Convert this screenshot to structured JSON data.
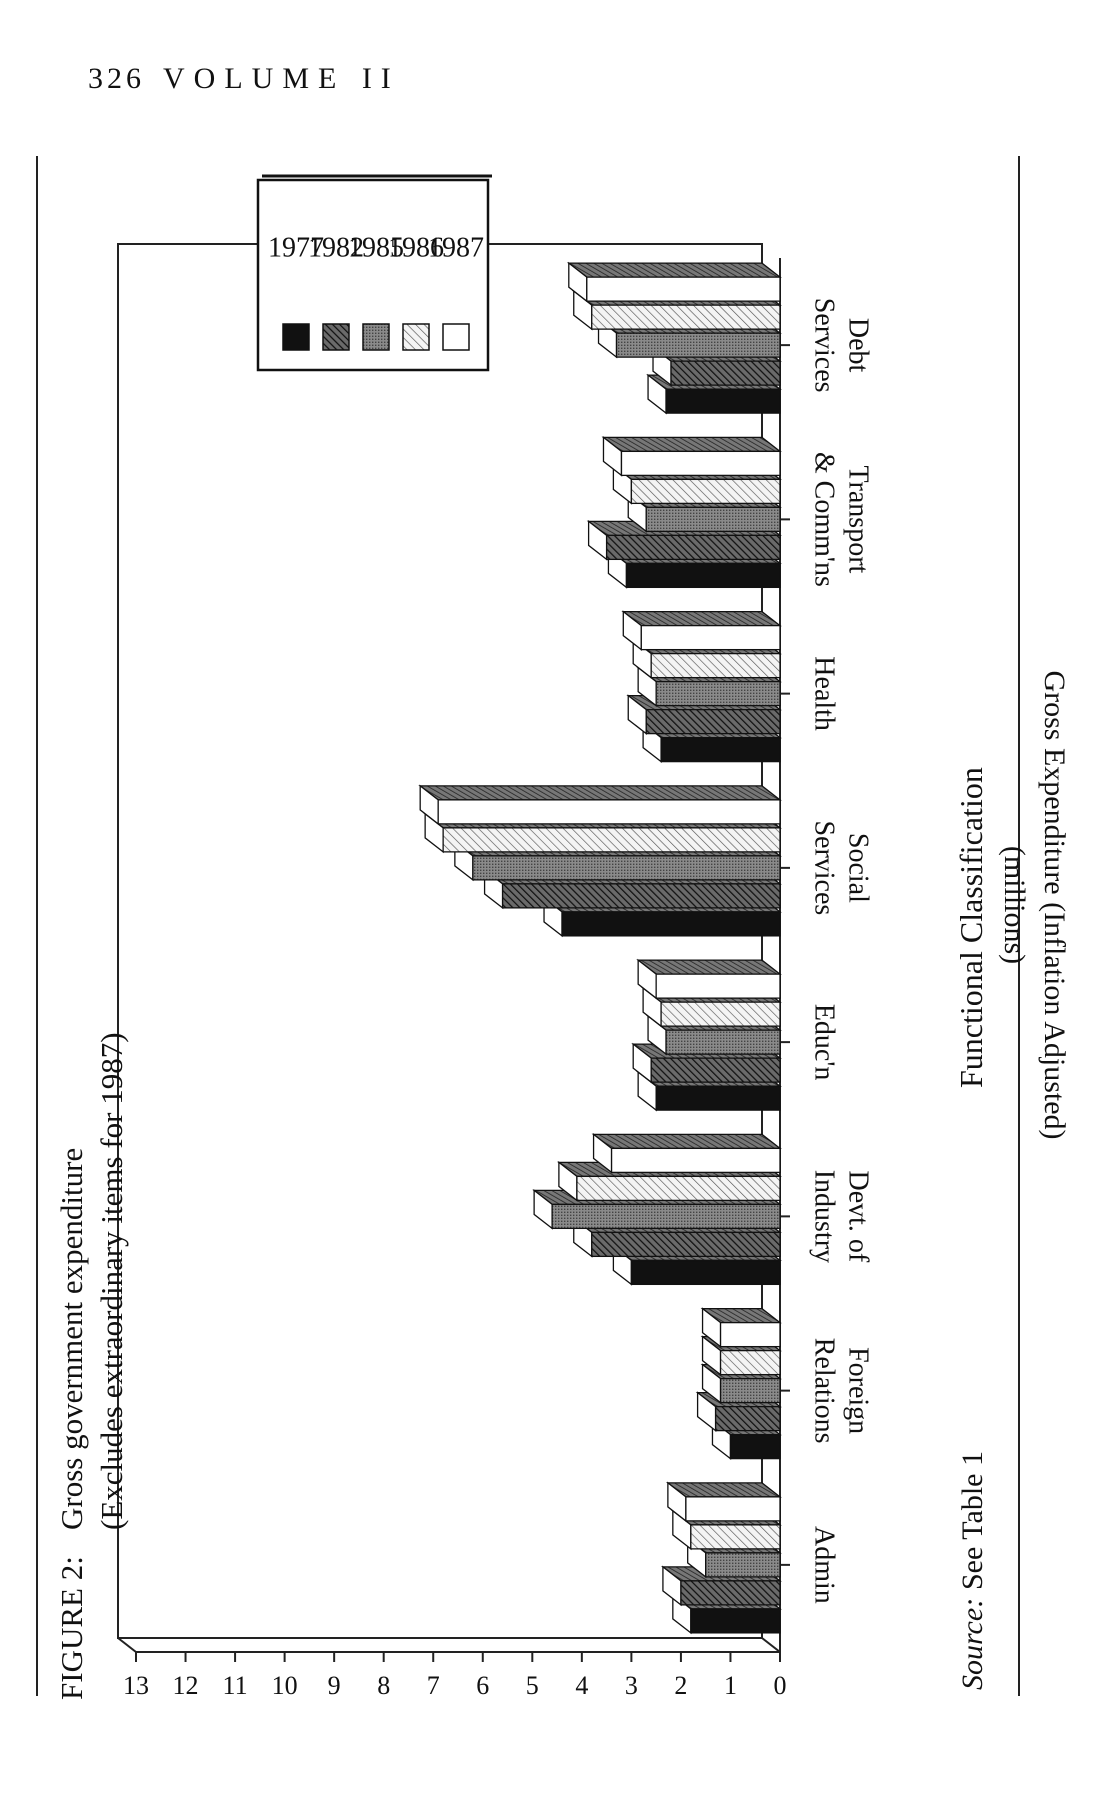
{
  "page": {
    "header_number": "326",
    "header_volume": "VOLUME II",
    "figure_label": "FIGURE 2:",
    "figure_title": "Gross government expenditure",
    "figure_subtitle": "(Excludes extraordinary items for 1987)",
    "source_label": "Source:",
    "source_text": "See Table 1"
  },
  "chart_data": {
    "type": "bar",
    "orientation": "horizontal-3d",
    "title": "Gross Expenditure (Inflation Adjusted)",
    "subtitle": "(millions)",
    "xlabel": "Functional Classification",
    "ylim": [
      0,
      13
    ],
    "ticks": [
      "0",
      "1",
      "2",
      "3",
      "4",
      "5",
      "6",
      "7",
      "8",
      "9",
      "10",
      "11",
      "12",
      "13"
    ],
    "categories": [
      [
        "Admin"
      ],
      [
        "Foreign",
        "Relations"
      ],
      [
        "Devt. of",
        "Industry"
      ],
      [
        "Educ'n"
      ],
      [
        "Social",
        "Services"
      ],
      [
        "Health"
      ],
      [
        "Transport",
        "& Comm'ns"
      ],
      [
        "Debt",
        "Services"
      ]
    ],
    "series": [
      {
        "name": "1977",
        "values": [
          1.8,
          1.0,
          3.0,
          2.5,
          4.4,
          2.4,
          3.1,
          2.3
        ]
      },
      {
        "name": "1982",
        "values": [
          2.0,
          1.3,
          3.8,
          2.6,
          5.6,
          2.7,
          3.5,
          2.2
        ]
      },
      {
        "name": "1985",
        "values": [
          1.5,
          1.2,
          4.6,
          2.3,
          6.2,
          2.5,
          2.7,
          3.3
        ]
      },
      {
        "name": "1986",
        "values": [
          1.8,
          1.2,
          4.1,
          2.4,
          6.8,
          2.6,
          3.0,
          3.8
        ]
      },
      {
        "name": "1987",
        "values": [
          1.9,
          1.2,
          3.4,
          2.5,
          6.9,
          2.8,
          3.2,
          3.9
        ]
      }
    ],
    "legend_position": "top-left",
    "colors": {
      "1977": "#111111",
      "1982": "#3a3a3a",
      "1985": "#7a7a7a",
      "1986": "#dcdcdc",
      "1987": "#ffffff"
    }
  }
}
